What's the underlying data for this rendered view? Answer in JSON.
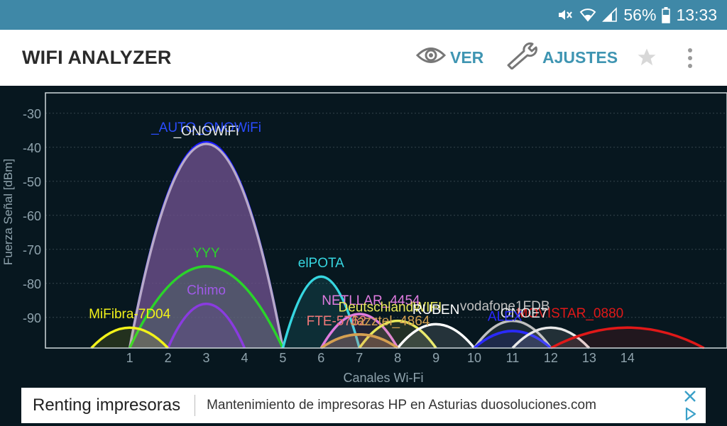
{
  "status": {
    "battery": "56%",
    "time": "13:33"
  },
  "header": {
    "title": "WIFI ANALYZER",
    "actions": {
      "view": "VER",
      "settings": "AJUSTES"
    }
  },
  "chart_data": {
    "type": "area",
    "ylabel": "Fuerza Señal [dBm]",
    "xlabel": "Canales Wi-Fi",
    "ylim": [
      -99,
      -24
    ],
    "xlim": [
      -1.2,
      16.6
    ],
    "y_ticks": [
      "-30",
      "-40",
      "-50",
      "-60",
      "-70",
      "-80",
      "-90"
    ],
    "y_tick_values": [
      -30,
      -40,
      -50,
      -60,
      -70,
      -80,
      -90
    ],
    "x_ticks": [
      "1",
      "2",
      "3",
      "4",
      "5",
      "6",
      "7",
      "8",
      "9",
      "10",
      "11",
      "12",
      "13",
      "14"
    ],
    "x_tick_values": [
      1,
      2,
      3,
      4,
      5,
      6,
      7,
      8,
      9,
      10,
      11,
      12,
      13,
      14
    ],
    "grid": "horizontal",
    "series": [
      {
        "name": "_AUTO_ONOWiFi",
        "channel": 3,
        "width": 4,
        "level": -38.5,
        "color": "#1a1aff",
        "fill": true
      },
      {
        "name": "_ONOWiFi",
        "channel": 3,
        "width": 4,
        "level": -39,
        "color": "#b8a9c9",
        "fill": true
      },
      {
        "name": "YYY",
        "channel": 3,
        "width": 4,
        "level": -75,
        "color": "#2ad42a",
        "fill": false
      },
      {
        "name": "Chimo",
        "channel": 3,
        "width": 2,
        "level": -86,
        "color": "#8a3be0",
        "fill": false
      },
      {
        "name": "MiFibra-7D04",
        "channel": 1,
        "width": 2,
        "level": -93,
        "color": "#f2f21a",
        "fill": false
      },
      {
        "name": "elPOTA",
        "channel": 6,
        "width": 2,
        "level": -78,
        "color": "#36d6e0",
        "fill": false
      },
      {
        "name": "NETLLAR_4454",
        "channel": 7,
        "width": 2,
        "level": -89,
        "color": "#e07ce0",
        "fill": false
      },
      {
        "name": "DeutschlandWIFI",
        "channel": 8,
        "width": 2,
        "level": -91,
        "color": "#e8e85a",
        "fill": false
      },
      {
        "name": "RUBEN",
        "channel": 9,
        "width": 2,
        "level": -92,
        "color": "#ffffff",
        "fill": false
      },
      {
        "name": "vodafone1FDB",
        "channel": 11,
        "width": 2,
        "level": -91,
        "color": "#c0c0c0",
        "fill": false
      },
      {
        "name": "FTE-5762",
        "channel": 7,
        "width": 2,
        "level": -95,
        "color": "#f07878",
        "fill": false
      },
      {
        "name": "Jazztel_4864",
        "channel": 7,
        "width": 2,
        "level": -95,
        "color": "#d4a050",
        "fill": false
      },
      {
        "name": "ALEX",
        "channel": 11,
        "width": 2,
        "level": -94,
        "color": "#2a2aff",
        "fill": false
      },
      {
        "name": "ONOE7",
        "channel": 12,
        "width": 2,
        "level": -93,
        "color": "#e8e8e8",
        "fill": false
      },
      {
        "name": "MOVISTAR_0880",
        "channel": 14,
        "width": 4,
        "level": -93,
        "color": "#e01818",
        "fill": false
      }
    ],
    "labels": [
      {
        "text": "_AUTO_ONOWiFi",
        "x": 3,
        "y": -35.5,
        "color": "#2a4cff"
      },
      {
        "text": "_ONOWiFi",
        "x": 3,
        "y": -36.5,
        "color": "#e8e8e8"
      },
      {
        "text": "YYY",
        "x": 3,
        "y": -72.3,
        "color": "#2ad42a"
      },
      {
        "text": "Chimo",
        "x": 3,
        "y": -83.3,
        "color": "#a05ae8"
      },
      {
        "text": "MiFibra-7D04",
        "x": 1,
        "y": -90.3,
        "color": "#f2f21a"
      },
      {
        "text": "elPOTA",
        "x": 6,
        "y": -75.3,
        "color": "#36d6e0"
      },
      {
        "text": "NETLLAR_4454",
        "x": 7.3,
        "y": -86.3,
        "color": "#e07ce0"
      },
      {
        "text": "DeutschlandWIFI",
        "x": 7.8,
        "y": -88.3,
        "color": "#e8e85a"
      },
      {
        "text": "vodafone1FDB",
        "x": 10.8,
        "y": -88,
        "color": "#c0c0c0"
      },
      {
        "text": "RUBEN",
        "x": 9,
        "y": -89,
        "color": "#ffffff"
      },
      {
        "text": "MOVISTAR_0880",
        "x": 12.5,
        "y": -90,
        "color": "#e01818"
      },
      {
        "text": "ONOE7",
        "x": 11.3,
        "y": -90,
        "color": "#e8e8e8"
      },
      {
        "text": "ALEX",
        "x": 10.8,
        "y": -91,
        "color": "#2a2aff"
      },
      {
        "text": "FTE-5762",
        "x": 6.4,
        "y": -92.3,
        "color": "#f07878"
      },
      {
        "text": "Jazztel_4864",
        "x": 7.8,
        "y": -92.3,
        "color": "#d4a050"
      }
    ]
  },
  "ad": {
    "title": "Renting impresoras",
    "text": "Mantenimiento de impresoras HP en Asturias duosoluciones.com"
  }
}
